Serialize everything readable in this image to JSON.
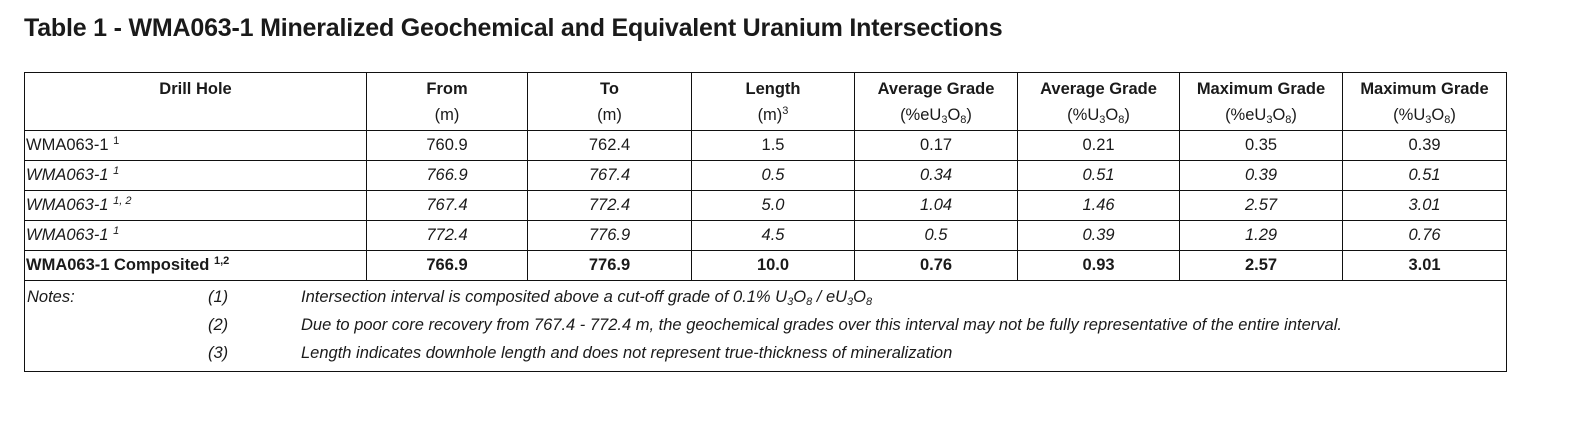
{
  "title": "Table 1 - WMA063-1 Mineralized Geochemical and Equivalent Uranium Intersections",
  "table": {
    "headers": [
      {
        "title": "Drill Hole",
        "unit": []
      },
      {
        "title": "From",
        "unit": [
          {
            "t": "(m)"
          }
        ]
      },
      {
        "title": "To",
        "unit": [
          {
            "t": "(m)"
          }
        ]
      },
      {
        "title": "Length",
        "unit": [
          {
            "t": "(m)"
          },
          {
            "sup": "3"
          }
        ]
      },
      {
        "title": "Average Grade",
        "unit": [
          {
            "t": "(%eU"
          },
          {
            "sub": "3"
          },
          {
            "t": "O"
          },
          {
            "sub": "8"
          },
          {
            "t": ")"
          }
        ]
      },
      {
        "title": "Average Grade",
        "unit": [
          {
            "t": "(%U"
          },
          {
            "sub": "3"
          },
          {
            "t": "O"
          },
          {
            "sub": "8"
          },
          {
            "t": ")"
          }
        ]
      },
      {
        "title": "Maximum Grade",
        "unit": [
          {
            "t": "(%eU"
          },
          {
            "sub": "3"
          },
          {
            "t": "O"
          },
          {
            "sub": "8"
          },
          {
            "t": ")"
          }
        ]
      },
      {
        "title": "Maximum Grade",
        "unit": [
          {
            "t": "(%U"
          },
          {
            "sub": "3"
          },
          {
            "t": "O"
          },
          {
            "sub": "8"
          },
          {
            "t": ")"
          }
        ]
      }
    ],
    "rows": [
      {
        "hole": "WMA063-1",
        "notes": "1",
        "font_style": "normal",
        "values": [
          "760.9",
          "762.4",
          "1.5",
          "0.17",
          "0.21",
          "0.35",
          "0.39"
        ]
      },
      {
        "hole": "WMA063-1",
        "notes": "1",
        "font_style": "italic",
        "values": [
          "766.9",
          "767.4",
          "0.5",
          "0.34",
          "0.51",
          "0.39",
          "0.51"
        ]
      },
      {
        "hole": "WMA063-1",
        "notes": "1, 2",
        "font_style": "italic",
        "values": [
          "767.4",
          "772.4",
          "5.0",
          "1.04",
          "1.46",
          "2.57",
          "3.01"
        ]
      },
      {
        "hole": "WMA063-1",
        "notes": "1",
        "font_style": "italic",
        "values": [
          "772.4",
          "776.9",
          "4.5",
          "0.5",
          "0.39",
          "1.29",
          "0.76"
        ]
      },
      {
        "hole": "WMA063-1 Composited",
        "notes": "1,2",
        "font_style": "bold",
        "values": [
          "766.9",
          "776.9",
          "10.0",
          "0.76",
          "0.93",
          "2.57",
          "3.01"
        ]
      }
    ],
    "notes_label": "Notes:",
    "notes": [
      {
        "num": "(1)",
        "text": [
          {
            "t": "Intersection interval is composited above a cut-off grade of 0.1% U"
          },
          {
            "sub": "3"
          },
          {
            "t": "O"
          },
          {
            "sub": "8"
          },
          {
            "t": " / eU"
          },
          {
            "sub": "3"
          },
          {
            "t": "O"
          },
          {
            "sub": "8"
          }
        ]
      },
      {
        "num": "(2)",
        "text": [
          {
            "t": "Due to poor core recovery from 767.4 - 772.4 m, the geochemical grades over this interval may not be fully representative of the entire interval."
          }
        ]
      },
      {
        "num": "(3)",
        "text": [
          {
            "t": "Length indicates downhole length and does not represent true-thickness of mineralization"
          }
        ]
      }
    ]
  }
}
